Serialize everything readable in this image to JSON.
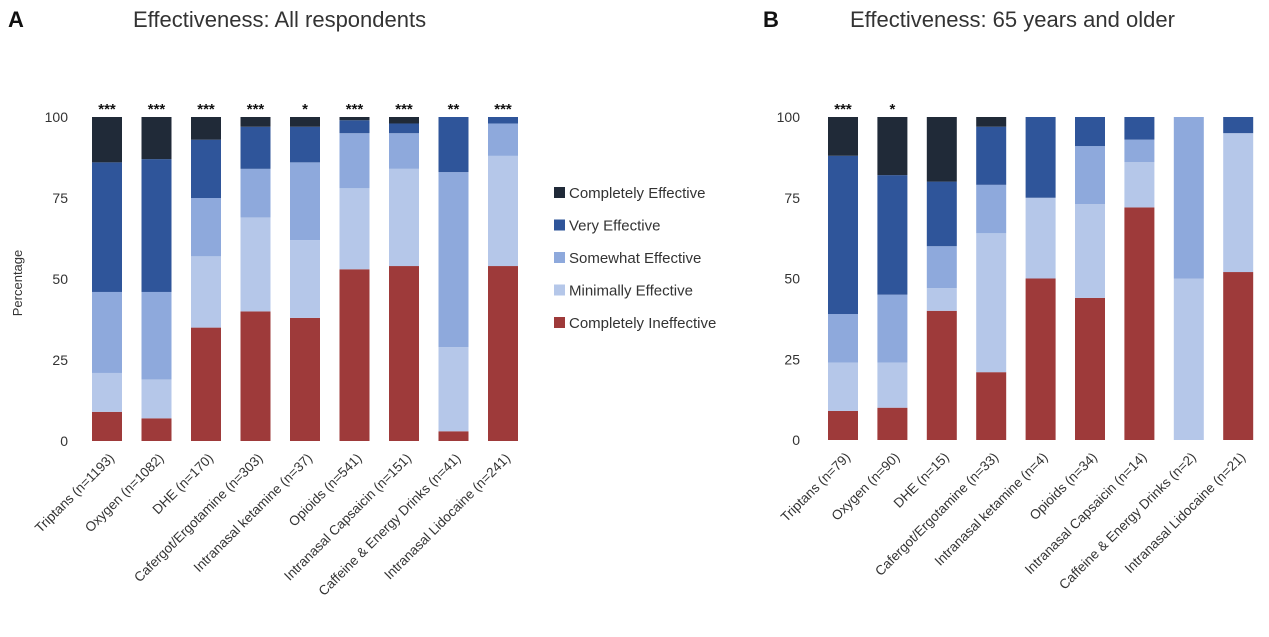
{
  "legend": [
    {
      "name": "Completely Effective",
      "color": "#202a38"
    },
    {
      "name": "Very Effective",
      "color": "#2f559a"
    },
    {
      "name": "Somewhat Effective",
      "color": "#8ea9dc"
    },
    {
      "name": "Minimally Effective",
      "color": "#b5c7e9"
    },
    {
      "name": "Completely Ineffective",
      "color": "#9e3a3a"
    }
  ],
  "chart_data": [
    {
      "type": "bar",
      "stacked": true,
      "panel": "A",
      "title": "Effectiveness:  All respondents",
      "ylabel": "Percentage",
      "ylim": [
        0,
        100
      ],
      "yticks": [
        0,
        25,
        50,
        75,
        100
      ],
      "categories": [
        "Triptans (n=1193)",
        "Oxygen (n=1082)",
        "DHE (n=170)",
        "Cafergot/Ergotamine (n=303)",
        "Intranasal ketamine (n=37)",
        "Opioids (n=541)",
        "Intranasal Capsaicin (n=151)",
        "Caffeine & Energy Drinks (n=41)",
        "Intranasal Lidocaine (n=241)"
      ],
      "significance": [
        "***",
        "***",
        "***",
        "***",
        "*",
        "***",
        "***",
        "**",
        "***"
      ],
      "series": [
        {
          "name": "Completely Ineffective",
          "values": [
            9,
            7,
            35,
            40,
            38,
            53,
            54,
            3,
            54
          ]
        },
        {
          "name": "Minimally Effective",
          "values": [
            12,
            12,
            22,
            29,
            24,
            25,
            30,
            26,
            34
          ]
        },
        {
          "name": "Somewhat Effective",
          "values": [
            25,
            27,
            18,
            15,
            24,
            17,
            11,
            54,
            10
          ]
        },
        {
          "name": "Very Effective",
          "values": [
            40,
            41,
            18,
            13,
            11,
            4,
            3,
            17,
            2
          ]
        },
        {
          "name": "Completely Effective",
          "values": [
            14,
            13,
            7,
            3,
            3,
            1,
            2,
            0,
            0
          ]
        }
      ]
    },
    {
      "type": "bar",
      "stacked": true,
      "panel": "B",
      "title": "Effectiveness:  65 years and older",
      "ylabel": "",
      "ylim": [
        0,
        100
      ],
      "yticks": [
        0,
        25,
        50,
        75,
        100
      ],
      "categories": [
        "Triptans (n=79)",
        "Oxygen (n=90)",
        "DHE (n=15)",
        "Cafergot/Ergotamine (n=33)",
        "Intranasal ketamine (n=4)",
        "Opioids (n=34)",
        "Intranasal Capsaicin (n=14)",
        "Caffeine & Energy Drinks (n=2)",
        "Intranasal Lidocaine (n=21)"
      ],
      "significance": [
        "***",
        "*",
        "",
        "",
        "",
        "",
        "",
        "",
        ""
      ],
      "series": [
        {
          "name": "Completely Ineffective",
          "values": [
            9,
            10,
            40,
            21,
            50,
            44,
            72,
            0,
            52
          ]
        },
        {
          "name": "Minimally Effective",
          "values": [
            15,
            14,
            7,
            43,
            25,
            29,
            14,
            50,
            43
          ]
        },
        {
          "name": "Somewhat Effective",
          "values": [
            15,
            21,
            13,
            15,
            0,
            18,
            7,
            50,
            0
          ]
        },
        {
          "name": "Very Effective",
          "values": [
            49,
            37,
            20,
            18,
            25,
            9,
            7,
            0,
            5
          ]
        },
        {
          "name": "Completely Effective",
          "values": [
            12,
            18,
            20,
            3,
            0,
            0,
            0,
            0,
            0
          ]
        }
      ]
    }
  ]
}
